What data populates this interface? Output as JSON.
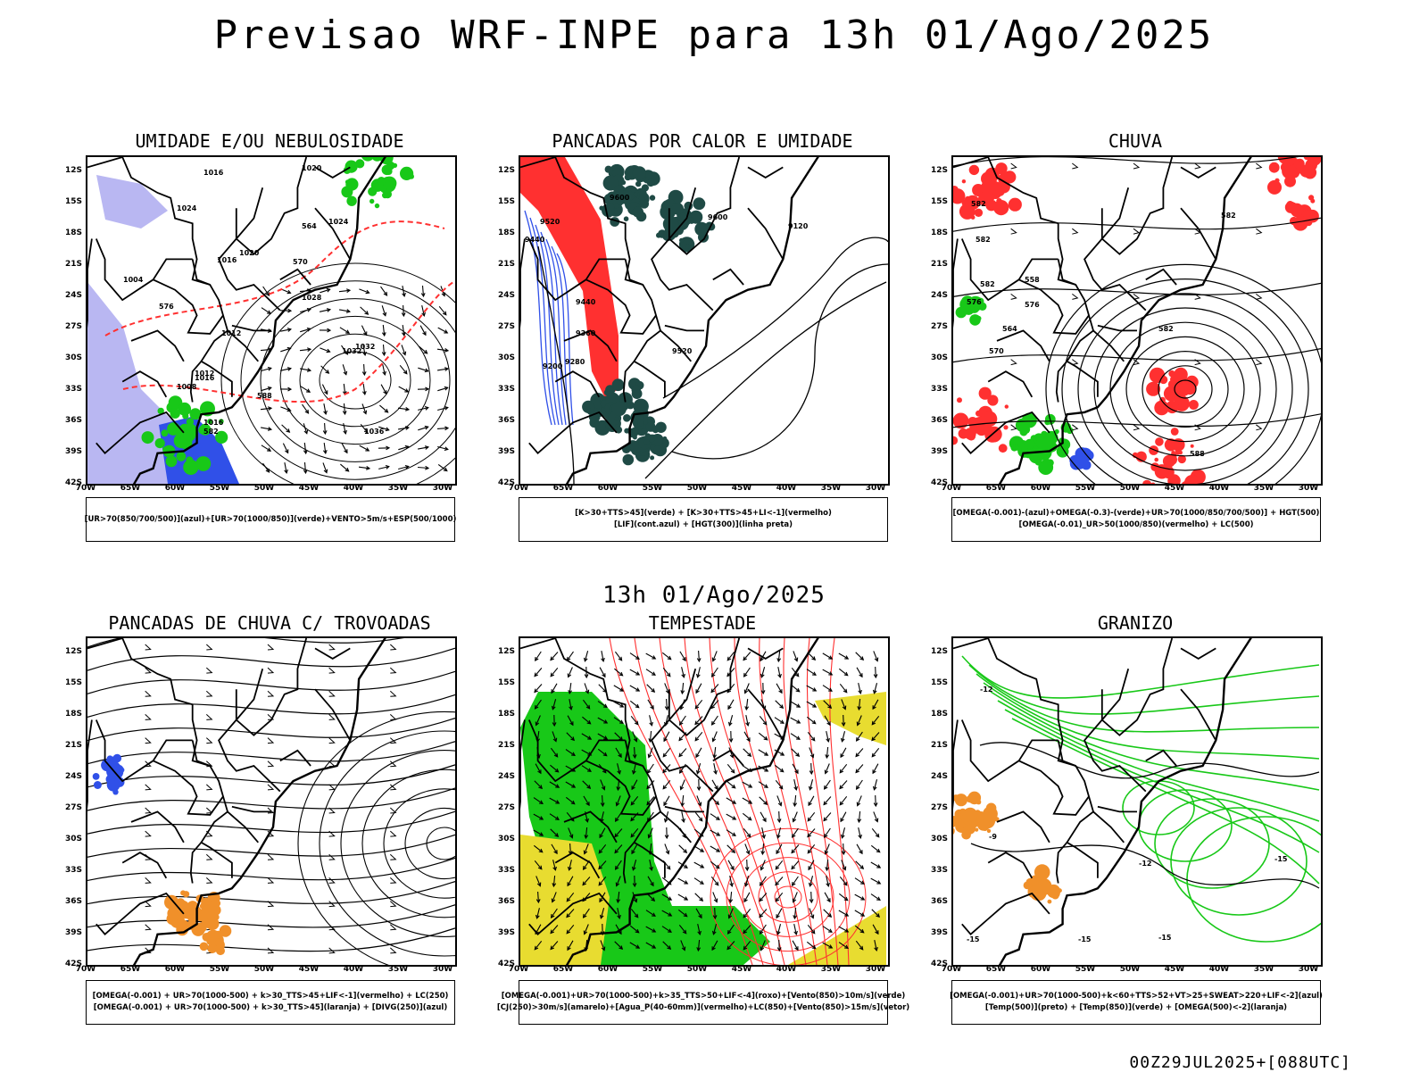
{
  "main_title": "Previsao WRF-INPE  para 13h 01/Ago/2025",
  "mid_title": "13h 01/Ago/2025",
  "footer": "00Z29JUL2025+[088UTC]",
  "lat_labels": [
    "12S",
    "15S",
    "18S",
    "21S",
    "24S",
    "27S",
    "30S",
    "33S",
    "36S",
    "39S",
    "42S"
  ],
  "lon_labels": [
    "70W",
    "65W",
    "60W",
    "55W",
    "50W",
    "45W",
    "40W",
    "35W",
    "30W"
  ],
  "colors": {
    "blue": "#3050e8",
    "lavender": "#b9b7f2",
    "green": "#18c818",
    "red": "#ff3030",
    "dark_teal": "#1f4a45",
    "yellow": "#e8dc30",
    "orange": "#f0902a"
  },
  "panels": [
    {
      "id": "umidade",
      "title": "UMIDADE E/OU NEBULOSIDADE",
      "caption": [
        "[UR>70(850/700/500)](azul)+[UR>70(1000/850)](verde)+VENTO>5m/s+ESP(500/1000)"
      ],
      "contour_labels": [
        "1016",
        "1020",
        "1024",
        "1016",
        "1012",
        "1016",
        "1020",
        "1024",
        "1028",
        "1032",
        "1004",
        "1008",
        "1012",
        "1016",
        "1032",
        "1036",
        "564",
        "570",
        "576",
        "588",
        "582"
      ]
    },
    {
      "id": "pancadas-calor",
      "title": "PANCADAS POR CALOR E UMIDADE",
      "caption": [
        "[K>30+TTS>45](verde) + [K>30+TTS>45+LI<-1](vermelho)",
        "[LIF](cont.azul) + [HGT(300)](linha preta)"
      ],
      "contour_labels": [
        "9600",
        "9520",
        "9440",
        "9440",
        "9360",
        "9280",
        "9200",
        "9120",
        "9600",
        "9520"
      ]
    },
    {
      "id": "chuva",
      "title": "CHUVA",
      "caption": [
        "[OMEGA(-0.001)-(azul)+OMEGA(-0.3)-(verde)+UR>70(1000/850/700/500)] + HGT(500)",
        "[OMEGA(-0.01)_UR>50(1000/850)(vermelho) + LC(500)"
      ],
      "contour_labels": [
        "582",
        "582",
        "582",
        "582",
        "576",
        "570",
        "564",
        "558",
        "576",
        "582",
        "588"
      ]
    },
    {
      "id": "pancadas-trovoadas",
      "title": "PANCADAS DE CHUVA C/ TROVOADAS",
      "caption": [
        "[OMEGA(-0.001) + UR>70(1000-500) + k>30_TTS>45+LIF<-1](vermelho) + LC(250)",
        "[OMEGA(-0.001) + UR>70(1000-500) + k>30_TTS>45](laranja) + [DIVG(250)](azul)"
      ]
    },
    {
      "id": "tempestade",
      "title": "TEMPESTADE",
      "caption": [
        "[OMEGA(-0.001)+UR>70(1000-500)+k>35_TTS>50+LIF<-4](roxo)+[Vento(850)>10m/s](verde)",
        "[CJ(250)>30m/s](amarelo)+[Agua_P(40-60mm)](vermelho)+LC(850)+[Vento(850)>15m/s](vetor)"
      ]
    },
    {
      "id": "granizo",
      "title": "GRANIZO",
      "caption": [
        "[OMEGA(-0.001)+UR>70(1000-500)+k<60+TTS>52+VT>25+SWEAT>220+LIF<-2](azul)",
        "[Temp(500)](preto) + [Temp(850)](verde) + [OMEGA(500)<-2](laranja)"
      ],
      "contour_labels": [
        "-9",
        "-12",
        "-15",
        "-12",
        "-15",
        "-15",
        "-15"
      ]
    }
  ]
}
